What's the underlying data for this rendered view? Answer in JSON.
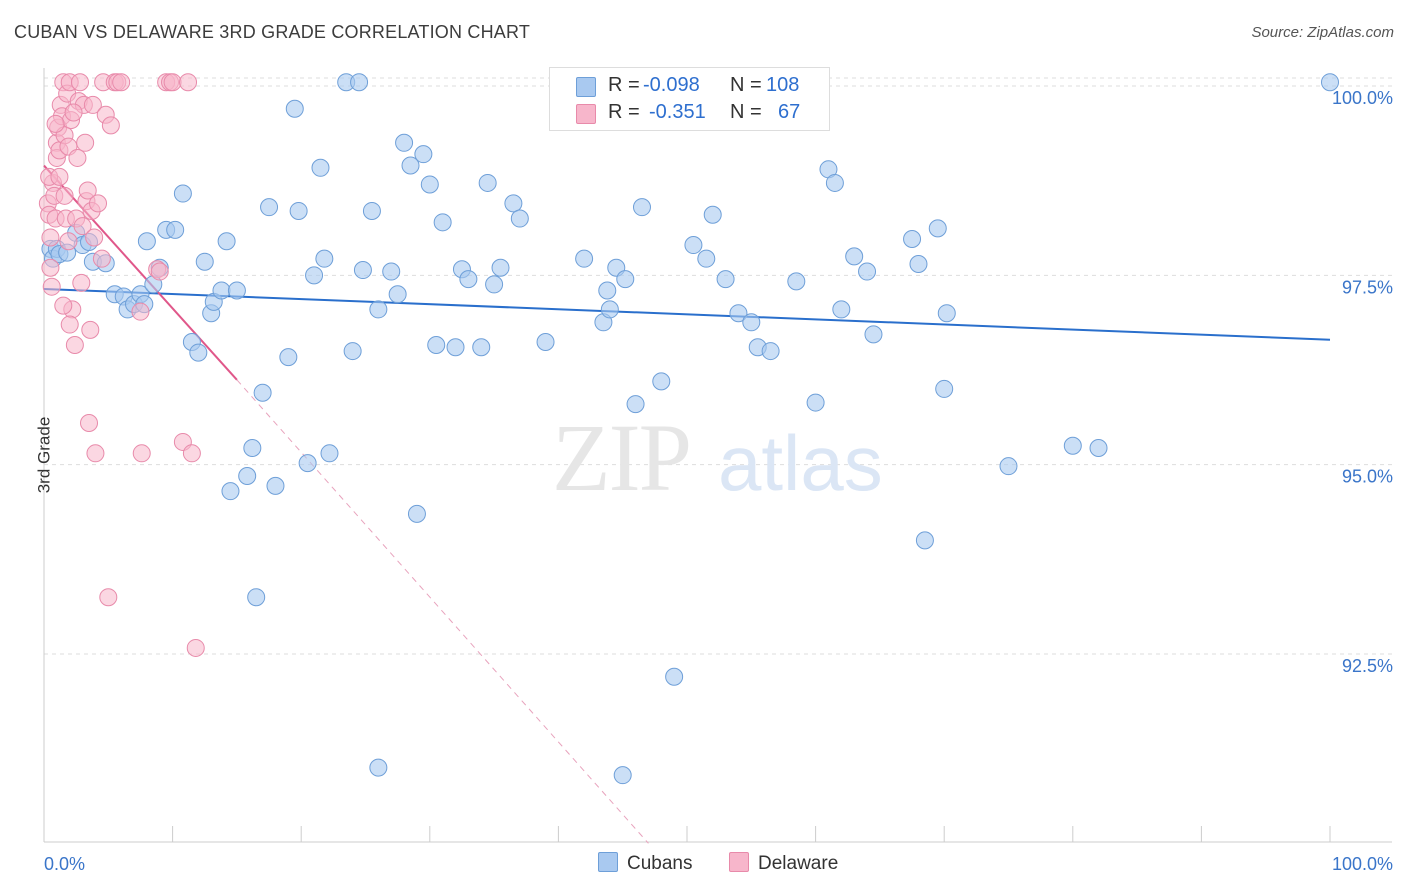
{
  "header": {
    "title": "CUBAN VS DELAWARE 3RD GRADE CORRELATION CHART",
    "source": "Source: ZipAtlas.com"
  },
  "legend": {
    "series": [
      {
        "name": "Cubans",
        "r_label": "R =",
        "r_value": "-0.098",
        "n_label": "N =",
        "n_value": "108"
      },
      {
        "name": "Delaware",
        "r_label": "R =",
        "r_value": "-0.351",
        "n_label": "N =",
        "n_value": "67"
      }
    ]
  },
  "colors": {
    "cubans_fill": "#a9c9f0",
    "cubans_stroke": "#6e9fd8",
    "cubans_line": "#2a6fcc",
    "delaware_fill": "#f7b6cb",
    "delaware_stroke": "#e88aaa",
    "delaware_line": "#e0578a",
    "axis_text": "#3a75c9",
    "grid": "#dddddd"
  },
  "chart_data": {
    "type": "scatter",
    "title": "CUBAN VS DELAWARE 3RD GRADE CORRELATION CHART",
    "xlabel": "",
    "ylabel": "3rd Grade",
    "xlim": [
      0,
      100
    ],
    "ylim": [
      90.0,
      100.5
    ],
    "x_tick_labels": [
      {
        "value": 0,
        "label": "0.0%"
      },
      {
        "value": 100,
        "label": "100.0%"
      }
    ],
    "y_tick_labels": [
      {
        "value": 100.0,
        "label": "100.0%"
      },
      {
        "value": 97.5,
        "label": "97.5%"
      },
      {
        "value": 95.0,
        "label": "95.0%"
      },
      {
        "value": 92.5,
        "label": "92.5%"
      }
    ],
    "watermark": {
      "part1": "ZIP",
      "part2": "atlas"
    },
    "series": [
      {
        "name": "Cubans",
        "trend": {
          "x0": 0,
          "y0": 97.32,
          "x1": 100,
          "y1": 96.65
        },
        "points": [
          [
            0.5,
            97.85
          ],
          [
            0.7,
            97.72
          ],
          [
            1.0,
            97.85
          ],
          [
            1.2,
            97.78
          ],
          [
            1.8,
            97.8
          ],
          [
            2.5,
            98.06
          ],
          [
            3.0,
            97.9
          ],
          [
            3.5,
            97.94
          ],
          [
            3.8,
            97.68
          ],
          [
            4.8,
            97.66
          ],
          [
            5.5,
            97.25
          ],
          [
            6.2,
            97.22
          ],
          [
            6.5,
            97.05
          ],
          [
            7.0,
            97.12
          ],
          [
            7.5,
            97.25
          ],
          [
            7.8,
            97.12
          ],
          [
            8.0,
            97.95
          ],
          [
            8.5,
            97.38
          ],
          [
            9.0,
            97.6
          ],
          [
            9.5,
            98.1
          ],
          [
            10.2,
            98.1
          ],
          [
            10.8,
            98.58
          ],
          [
            11.5,
            96.62
          ],
          [
            12.0,
            96.48
          ],
          [
            12.5,
            97.68
          ],
          [
            13.0,
            97.0
          ],
          [
            13.2,
            97.15
          ],
          [
            13.8,
            97.3
          ],
          [
            14.2,
            97.95
          ],
          [
            14.5,
            94.65
          ],
          [
            15.0,
            97.3
          ],
          [
            15.8,
            94.85
          ],
          [
            16.2,
            95.22
          ],
          [
            16.5,
            93.25
          ],
          [
            17.0,
            95.95
          ],
          [
            17.5,
            98.4
          ],
          [
            18.0,
            94.72
          ],
          [
            19.0,
            96.42
          ],
          [
            19.5,
            99.7
          ],
          [
            19.8,
            98.35
          ],
          [
            20.5,
            95.02
          ],
          [
            21.0,
            97.5
          ],
          [
            21.5,
            98.92
          ],
          [
            21.8,
            97.72
          ],
          [
            22.2,
            95.15
          ],
          [
            23.5,
            100.05
          ],
          [
            24.0,
            96.5
          ],
          [
            24.5,
            100.05
          ],
          [
            24.8,
            97.57
          ],
          [
            25.5,
            98.35
          ],
          [
            26.0,
            97.05
          ],
          [
            27.0,
            97.55
          ],
          [
            27.5,
            97.25
          ],
          [
            28.0,
            99.25
          ],
          [
            28.5,
            98.95
          ],
          [
            29.0,
            94.35
          ],
          [
            29.5,
            99.1
          ],
          [
            30.0,
            98.7
          ],
          [
            30.5,
            96.58
          ],
          [
            31.0,
            98.2
          ],
          [
            32.0,
            96.55
          ],
          [
            32.5,
            97.58
          ],
          [
            33.0,
            97.45
          ],
          [
            34.0,
            96.55
          ],
          [
            34.5,
            98.72
          ],
          [
            35.0,
            97.38
          ],
          [
            35.5,
            97.6
          ],
          [
            36.5,
            98.45
          ],
          [
            37.0,
            98.25
          ],
          [
            39.0,
            96.62
          ],
          [
            42.0,
            97.72
          ],
          [
            43.5,
            96.88
          ],
          [
            43.8,
            97.3
          ],
          [
            44.0,
            97.05
          ],
          [
            44.5,
            97.6
          ],
          [
            45.2,
            97.45
          ],
          [
            46.0,
            95.8
          ],
          [
            46.5,
            98.4
          ],
          [
            48.0,
            96.1
          ],
          [
            49.0,
            92.2
          ],
          [
            50.5,
            97.9
          ],
          [
            51.5,
            97.72
          ],
          [
            52.0,
            98.3
          ],
          [
            53.0,
            97.45
          ],
          [
            54.0,
            97.0
          ],
          [
            55.0,
            96.88
          ],
          [
            55.5,
            96.55
          ],
          [
            56.5,
            96.5
          ],
          [
            58.5,
            97.42
          ],
          [
            60.0,
            95.82
          ],
          [
            61.0,
            98.9
          ],
          [
            61.5,
            98.72
          ],
          [
            62.0,
            97.05
          ],
          [
            63.0,
            97.75
          ],
          [
            64.0,
            97.55
          ],
          [
            64.5,
            96.72
          ],
          [
            67.5,
            97.98
          ],
          [
            68.0,
            97.65
          ],
          [
            68.5,
            94.0
          ],
          [
            69.5,
            98.12
          ],
          [
            70.0,
            96.0
          ],
          [
            70.2,
            97.0
          ],
          [
            75.0,
            94.98
          ],
          [
            80.0,
            95.25
          ],
          [
            82.0,
            95.22
          ],
          [
            100.0,
            100.05
          ],
          [
            26.0,
            91.0
          ],
          [
            45.0,
            90.9
          ]
        ]
      },
      {
        "name": "Delaware",
        "trend": {
          "x0": 0,
          "y0": 98.95,
          "x1": 15,
          "y1": 96.12,
          "dash_x1": 47,
          "dash_y1": 90.0
        },
        "points": [
          [
            0.3,
            98.45
          ],
          [
            0.4,
            98.3
          ],
          [
            0.5,
            98.0
          ],
          [
            0.5,
            97.6
          ],
          [
            0.6,
            97.35
          ],
          [
            0.7,
            98.72
          ],
          [
            0.8,
            98.55
          ],
          [
            0.9,
            98.25
          ],
          [
            1.0,
            99.25
          ],
          [
            1.0,
            99.05
          ],
          [
            1.1,
            99.45
          ],
          [
            1.2,
            99.15
          ],
          [
            1.3,
            99.75
          ],
          [
            1.4,
            99.6
          ],
          [
            1.5,
            100.05
          ],
          [
            1.6,
            99.35
          ],
          [
            1.7,
            98.25
          ],
          [
            1.8,
            99.9
          ],
          [
            1.9,
            99.2
          ],
          [
            2.0,
            100.05
          ],
          [
            2.1,
            99.55
          ],
          [
            2.2,
            97.05
          ],
          [
            2.4,
            96.58
          ],
          [
            2.5,
            98.25
          ],
          [
            2.6,
            99.05
          ],
          [
            2.7,
            99.8
          ],
          [
            2.8,
            100.05
          ],
          [
            2.9,
            97.4
          ],
          [
            3.0,
            98.15
          ],
          [
            3.1,
            99.75
          ],
          [
            3.2,
            99.25
          ],
          [
            3.3,
            98.48
          ],
          [
            3.4,
            98.62
          ],
          [
            3.5,
            95.55
          ],
          [
            3.6,
            96.78
          ],
          [
            3.7,
            98.35
          ],
          [
            3.8,
            99.75
          ],
          [
            4.0,
            95.15
          ],
          [
            4.2,
            98.45
          ],
          [
            4.5,
            97.72
          ],
          [
            4.6,
            100.05
          ],
          [
            4.8,
            99.62
          ],
          [
            5.0,
            93.25
          ],
          [
            5.2,
            99.48
          ],
          [
            5.5,
            100.05
          ],
          [
            5.7,
            100.05
          ],
          [
            6.0,
            100.05
          ],
          [
            7.5,
            97.02
          ],
          [
            7.6,
            95.15
          ],
          [
            8.8,
            97.58
          ],
          [
            9.0,
            97.55
          ],
          [
            9.5,
            100.05
          ],
          [
            9.8,
            100.05
          ],
          [
            10.0,
            100.05
          ],
          [
            10.8,
            95.3
          ],
          [
            11.2,
            100.05
          ],
          [
            11.5,
            95.15
          ],
          [
            11.8,
            92.58
          ],
          [
            0.4,
            98.8
          ],
          [
            1.5,
            97.1
          ],
          [
            2.3,
            99.65
          ],
          [
            1.2,
            98.8
          ],
          [
            3.9,
            98.0
          ],
          [
            2.0,
            96.85
          ],
          [
            0.9,
            99.5
          ],
          [
            1.6,
            98.55
          ],
          [
            1.9,
            97.95
          ]
        ]
      }
    ]
  }
}
